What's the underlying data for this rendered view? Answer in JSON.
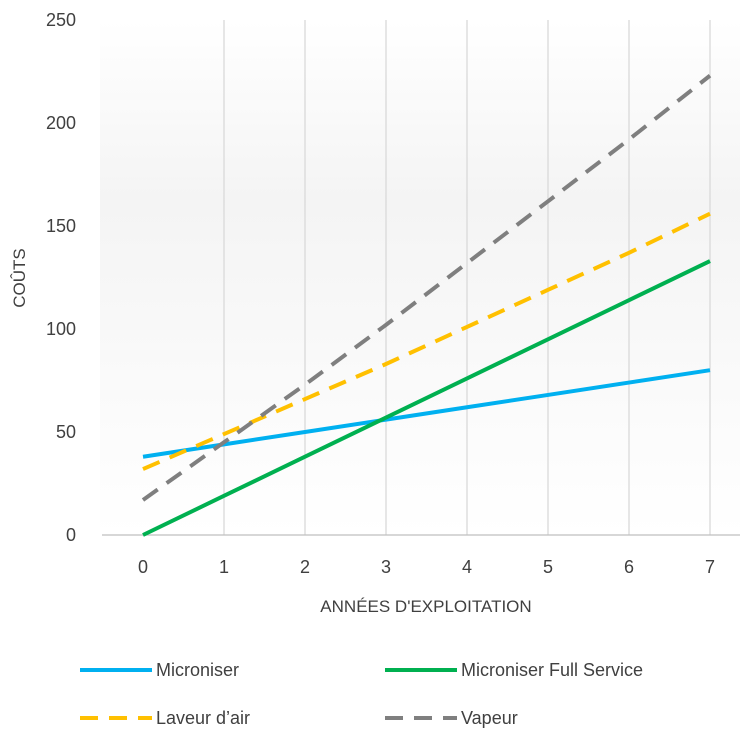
{
  "chart_data": {
    "type": "line",
    "title": "",
    "xlabel": "ANNÉES D'EXPLOITATION",
    "ylabel": "COÛTS",
    "x": [
      0,
      1,
      2,
      3,
      4,
      5,
      6,
      7
    ],
    "xlim": [
      0,
      7
    ],
    "ylim": [
      0,
      250
    ],
    "yticks": [
      "0",
      "50",
      "100",
      "150",
      "200",
      "250"
    ],
    "xticks": [
      "0",
      "1",
      "2",
      "3",
      "4",
      "5",
      "6",
      "7"
    ],
    "grid": "vertical",
    "legend_position": "bottom",
    "series": [
      {
        "name": "Microniser",
        "values": [
          38,
          44,
          50,
          56,
          62,
          68,
          74,
          80
        ],
        "color": "#00b0f0",
        "dash": "solid"
      },
      {
        "name": "Microniser Full Service",
        "values": [
          0,
          19,
          38,
          57,
          76,
          95,
          114,
          133
        ],
        "color": "#00b050",
        "dash": "solid"
      },
      {
        "name": "Laveur d’air",
        "values": [
          32,
          49,
          66,
          83,
          101,
          119,
          137,
          156
        ],
        "color": "#ffc000",
        "dash": "dashed"
      },
      {
        "name": "Vapeur",
        "values": [
          17,
          45,
          73,
          102,
          132,
          162,
          192,
          223
        ],
        "color": "#7f7f7f",
        "dash": "dashed"
      }
    ]
  }
}
